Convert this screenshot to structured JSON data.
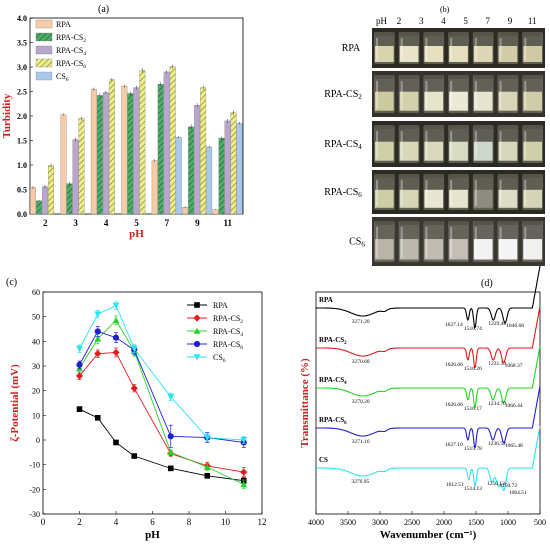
{
  "panels": {
    "a": {
      "tag": "(a)"
    },
    "b": {
      "tag": "(b)"
    },
    "c": {
      "tag": "(c)"
    },
    "d": {
      "tag": "(d)"
    }
  },
  "chart_data": [
    {
      "id": "a",
      "type": "bar",
      "ylabel": "Turbidity",
      "xlabel": "pH",
      "ylim": [
        0,
        4.0
      ],
      "yticks": [
        "0.0",
        "0.5",
        "1.0",
        "1.5",
        "2.0",
        "2.5",
        "3.0",
        "3.5",
        "4.0"
      ],
      "categories": [
        "2",
        "3",
        "4",
        "5",
        "7",
        "9",
        "11"
      ],
      "series": [
        {
          "name": "RPA",
          "color": "#f6cba6",
          "pattern": "solid",
          "values": [
            0.54,
            2.03,
            2.55,
            2.61,
            1.09,
            0.14,
            0.09
          ]
        },
        {
          "name": "RPA-CS",
          "sub": "2",
          "color": "#4daf6a",
          "pattern": "hatch",
          "values": [
            0.27,
            0.62,
            2.42,
            2.46,
            2.65,
            1.78,
            1.55
          ]
        },
        {
          "name": "RPA-CS",
          "sub": "4",
          "color": "#b9a6cf",
          "pattern": "solid",
          "values": [
            0.56,
            1.52,
            2.48,
            2.58,
            2.9,
            2.22,
            1.9
          ]
        },
        {
          "name": "RPA-CS",
          "sub": "6",
          "color": "#eded8a",
          "pattern": "hatch",
          "values": [
            0.99,
            1.95,
            2.74,
            2.93,
            3.01,
            2.58,
            2.07
          ]
        },
        {
          "name": "CS",
          "sub": "6",
          "color": "#a9c8ec",
          "pattern": "solid",
          "values": [
            null,
            null,
            null,
            null,
            1.57,
            1.37,
            1.85
          ]
        }
      ],
      "error": [
        [
          0.03,
          0.02,
          0.03,
          0.03,
          0.03,
          0.02,
          0.01
        ],
        [
          0.02,
          0.03,
          0.04,
          0.04,
          0.04,
          0.05,
          0.03
        ],
        [
          0.03,
          0.04,
          0.03,
          0.04,
          0.03,
          0.04,
          0.04
        ],
        [
          0.04,
          0.04,
          0.04,
          0.05,
          0.04,
          0.04,
          0.05
        ],
        [
          0,
          0,
          0,
          0,
          0.02,
          0.02,
          0.03
        ]
      ],
      "legend": "top-left"
    },
    {
      "id": "c",
      "type": "line",
      "ylabel": "ζ-Potential (mV)",
      "xlabel": "pH",
      "xlim": [
        0,
        12
      ],
      "ylim": [
        -30,
        60
      ],
      "xticks": [
        "0",
        "2",
        "4",
        "6",
        "8",
        "10",
        "12"
      ],
      "yticks": [
        "-30",
        "-20",
        "-10",
        "0",
        "10",
        "20",
        "30",
        "40",
        "50",
        "60"
      ],
      "x": [
        2,
        3,
        4,
        5,
        7,
        9,
        11
      ],
      "series": [
        {
          "name": "RPA",
          "color": "#000000",
          "marker": "square",
          "values": [
            12.5,
            9.0,
            -1.0,
            -6.5,
            -11.5,
            -14.5,
            -16.5
          ],
          "err": [
            1,
            0.6,
            0.5,
            0.6,
            0.8,
            1,
            1.2
          ]
        },
        {
          "name": "RPA-CS",
          "sub": "2",
          "color": "#e41a1c",
          "marker": "diamond",
          "values": [
            26.0,
            35.0,
            35.5,
            21.0,
            -5.5,
            -10.5,
            -13.0
          ],
          "err": [
            1.5,
            1.5,
            1.8,
            1.5,
            1,
            1.5,
            1.8
          ]
        },
        {
          "name": "RPA-CS",
          "sub": "4",
          "color": "#2ad02a",
          "marker": "triangle",
          "values": [
            29.0,
            41.0,
            48.5,
            36.0,
            -5.0,
            -11.0,
            -18.0
          ],
          "err": [
            1.5,
            2,
            1.8,
            2,
            1,
            1.5,
            1.8
          ]
        },
        {
          "name": "RPA-CS",
          "sub": "6",
          "color": "#1f1fd6",
          "marker": "circle",
          "values": [
            30.5,
            44.0,
            41.5,
            36.5,
            1.5,
            1.0,
            -1.0
          ],
          "err": [
            1.5,
            2,
            2,
            2,
            4.5,
            2,
            2
          ]
        },
        {
          "name": "CS",
          "sub": "6",
          "color": "#27e6f2",
          "marker": "triangle-down",
          "values": [
            37.0,
            51.0,
            54.5,
            37.0,
            17.5,
            1.0,
            0.0
          ],
          "err": [
            1.5,
            1.5,
            1.5,
            1.5,
            1.5,
            1.5,
            1.5
          ]
        }
      ],
      "legend": "top-right"
    },
    {
      "id": "d",
      "type": "line",
      "ylabel": "Transmittance (%)",
      "xlabel": "Wavenumber (cm⁻¹)",
      "xlim": [
        4000,
        500
      ],
      "xticks": [
        "4000",
        "3500",
        "3000",
        "2500",
        "2000",
        "1500",
        "1000",
        "500"
      ],
      "series": [
        {
          "name": "RPA",
          "color": "#000000",
          "peaks": [
            "3271.20",
            "1627.14",
            "1516.74",
            "1229.40",
            "1046.68"
          ]
        },
        {
          "name": "RPA-CS",
          "sub": "2",
          "color": "#e41a1c",
          "peaks": [
            "3270.68",
            "1626.66",
            "1516.26",
            "1231.33",
            "1068.37"
          ]
        },
        {
          "name": "RPA-CS",
          "sub": "4",
          "color": "#22d622",
          "peaks": [
            "3270.20",
            "1626.66",
            "1516.17",
            "1234.70",
            "1066.44"
          ]
        },
        {
          "name": "RPA-CS",
          "sub": "6",
          "color": "#1f1fd6",
          "peaks": [
            "3271.16",
            "1627.10",
            "1515.78",
            "1236.52",
            "1065.48"
          ]
        },
        {
          "name": "CS",
          "color": "#27e6f2",
          "peaks": [
            "3276.95",
            "1612.51",
            "1514.13",
            "1250.13",
            "1150.72",
            "1064.51"
          ]
        }
      ]
    }
  ],
  "photo_panel": {
    "ph_label": "pH",
    "ph_values": [
      "2",
      "3",
      "4",
      "5",
      "7",
      "9",
      "11"
    ],
    "rows": [
      {
        "name": "RPA",
        "sub": "",
        "bg": "#2c2a22",
        "liquid": [
          "#d9d3b0",
          "#e9e4c8",
          "#e6e0c0",
          "#e5dfc0",
          "#ddd7b6",
          "#d2cda8",
          "#cfcaa4"
        ]
      },
      {
        "name": "RPA-CS",
        "sub": "2",
        "bg": "#34322a",
        "liquid": [
          "#cdcaa0",
          "#d3d1ac",
          "#e7e4cc",
          "#ece9d6",
          "#e6e3d0",
          "#d8d4b8",
          "#d0cca8"
        ]
      },
      {
        "name": "RPA-CS",
        "sub": "4",
        "bg": "#2b2b24",
        "liquid": [
          "#cfd0a8",
          "#d8d8b8",
          "#dad8bd",
          "#d8dcc4",
          "#cfd6cc",
          "#d7d7bd",
          "#cfcfa8"
        ]
      },
      {
        "name": "RPA-CS",
        "sub": "6",
        "bg": "#2a2a22",
        "liquid": [
          "#cdcda8",
          "#d6d5b6",
          "#e8e6d2",
          "#e6e4cf",
          "#8e8c80",
          "#dddcc6",
          "#d6d4b6"
        ]
      },
      {
        "name": "CS",
        "sub": "6",
        "bg": "#3a3731",
        "liquid": [
          "#b9b3a8",
          "#bdb8ae",
          "#c1bbb2",
          "#c4beb6",
          "#f2f2f2",
          "#f4f4f4",
          "#f0f0ef"
        ]
      }
    ]
  }
}
